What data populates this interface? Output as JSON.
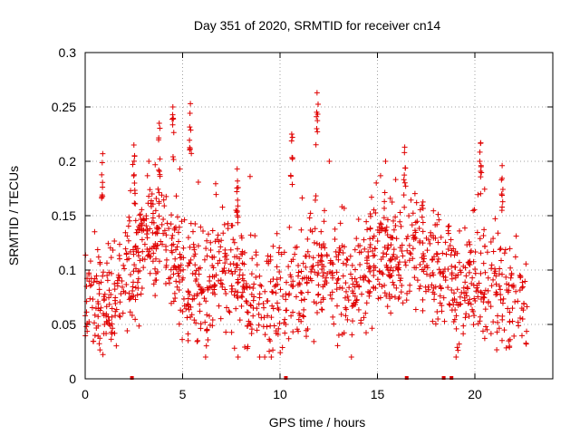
{
  "chart_data": {
    "type": "scatter",
    "title": "Day 351 of 2020, SRMTID for receiver cn14",
    "xlabel": "GPS time / hours",
    "ylabel": "SRMTID / TECUs",
    "xlim": [
      0,
      24
    ],
    "ylim": [
      0,
      0.3
    ],
    "xticks": [
      0,
      5,
      10,
      15,
      20
    ],
    "xtick_labels": [
      "0",
      "5",
      "10",
      "15",
      "20"
    ],
    "yticks": [
      0,
      0.05,
      0.1,
      0.15,
      0.2,
      0.25,
      0.3
    ],
    "ytick_labels": [
      "0",
      "0.05",
      "0.1",
      "0.15",
      "0.2",
      "0.25",
      "0.3"
    ],
    "grid": true,
    "marker": "+",
    "series_color": "#e00000",
    "baseline_markers_x": [
      2.4,
      10.3,
      16.5,
      18.4,
      18.8
    ],
    "trend": {
      "x": [
        0,
        1,
        2,
        3,
        3.5,
        4,
        5,
        6,
        7,
        8,
        9,
        10,
        11,
        12,
        13,
        14,
        15,
        16,
        17,
        18,
        19,
        20,
        21,
        22,
        22.7
      ],
      "y": [
        0.08,
        0.06,
        0.09,
        0.13,
        0.14,
        0.13,
        0.1,
        0.08,
        0.1,
        0.09,
        0.07,
        0.07,
        0.08,
        0.1,
        0.09,
        0.08,
        0.12,
        0.11,
        0.12,
        0.1,
        0.08,
        0.09,
        0.09,
        0.065,
        0.06
      ]
    },
    "peaks": [
      {
        "x": 0.9,
        "y": 0.207
      },
      {
        "x": 2.5,
        "y": 0.215
      },
      {
        "x": 3.8,
        "y": 0.235
      },
      {
        "x": 4.5,
        "y": 0.25
      },
      {
        "x": 5.4,
        "y": 0.253
      },
      {
        "x": 7.8,
        "y": 0.193
      },
      {
        "x": 10.6,
        "y": 0.225
      },
      {
        "x": 11.9,
        "y": 0.263
      },
      {
        "x": 16.4,
        "y": 0.213
      },
      {
        "x": 20.3,
        "y": 0.217
      },
      {
        "x": 21.4,
        "y": 0.196
      }
    ],
    "point_count": 1400
  }
}
